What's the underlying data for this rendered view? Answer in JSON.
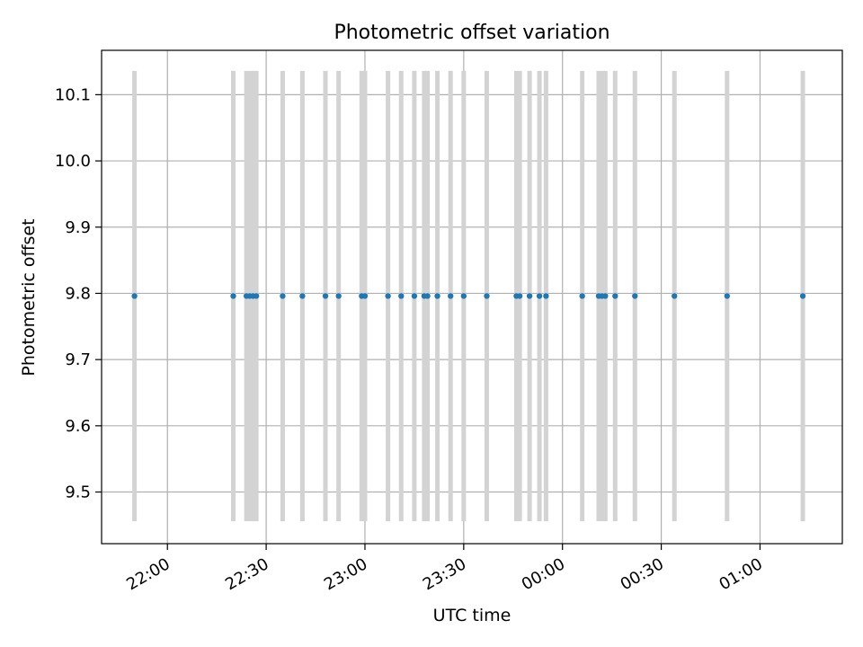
{
  "chart_data": {
    "type": "scatter",
    "title": "Photometric offset variation",
    "xlabel": "UTC time",
    "ylabel": "Photometric offset",
    "xlim": [
      "21:40",
      "01:25"
    ],
    "ylim": [
      9.422,
      10.167
    ],
    "grid": true,
    "y_ticks": [
      "9.5",
      "9.6",
      "9.7",
      "9.8",
      "9.9",
      "10.0",
      "10.1"
    ],
    "x_ticks": [
      "22:00",
      "22:30",
      "23:00",
      "23:30",
      "00:00",
      "00:30",
      "01:00"
    ],
    "series": [
      {
        "marker_color": "#1f77b4",
        "errorbar_color": "#d3d3d3",
        "error": 0.34,
        "points": [
          {
            "x": "21:50",
            "y": 9.796
          },
          {
            "x": "22:20",
            "y": 9.796
          },
          {
            "x": "22:24",
            "y": 9.796
          },
          {
            "x": "22:25",
            "y": 9.796
          },
          {
            "x": "22:26",
            "y": 9.796
          },
          {
            "x": "22:27",
            "y": 9.796
          },
          {
            "x": "22:35",
            "y": 9.796
          },
          {
            "x": "22:41",
            "y": 9.796
          },
          {
            "x": "22:48",
            "y": 9.796
          },
          {
            "x": "22:52",
            "y": 9.796
          },
          {
            "x": "22:59",
            "y": 9.796
          },
          {
            "x": "23:00",
            "y": 9.796
          },
          {
            "x": "23:07",
            "y": 9.796
          },
          {
            "x": "23:11",
            "y": 9.796
          },
          {
            "x": "23:15",
            "y": 9.796
          },
          {
            "x": "23:18",
            "y": 9.796
          },
          {
            "x": "23:19",
            "y": 9.796
          },
          {
            "x": "23:22",
            "y": 9.796
          },
          {
            "x": "23:26",
            "y": 9.796
          },
          {
            "x": "23:30",
            "y": 9.796
          },
          {
            "x": "23:37",
            "y": 9.796
          },
          {
            "x": "23:46",
            "y": 9.796
          },
          {
            "x": "23:47",
            "y": 9.796
          },
          {
            "x": "23:50",
            "y": 9.796
          },
          {
            "x": "23:53",
            "y": 9.796
          },
          {
            "x": "23:55",
            "y": 9.796
          },
          {
            "x": "00:06",
            "y": 9.796
          },
          {
            "x": "00:11",
            "y": 9.796
          },
          {
            "x": "00:12",
            "y": 9.796
          },
          {
            "x": "00:13",
            "y": 9.796
          },
          {
            "x": "00:16",
            "y": 9.796
          },
          {
            "x": "00:22",
            "y": 9.796
          },
          {
            "x": "00:34",
            "y": 9.796
          },
          {
            "x": "00:50",
            "y": 9.796
          },
          {
            "x": "01:13",
            "y": 9.796
          }
        ]
      }
    ]
  }
}
